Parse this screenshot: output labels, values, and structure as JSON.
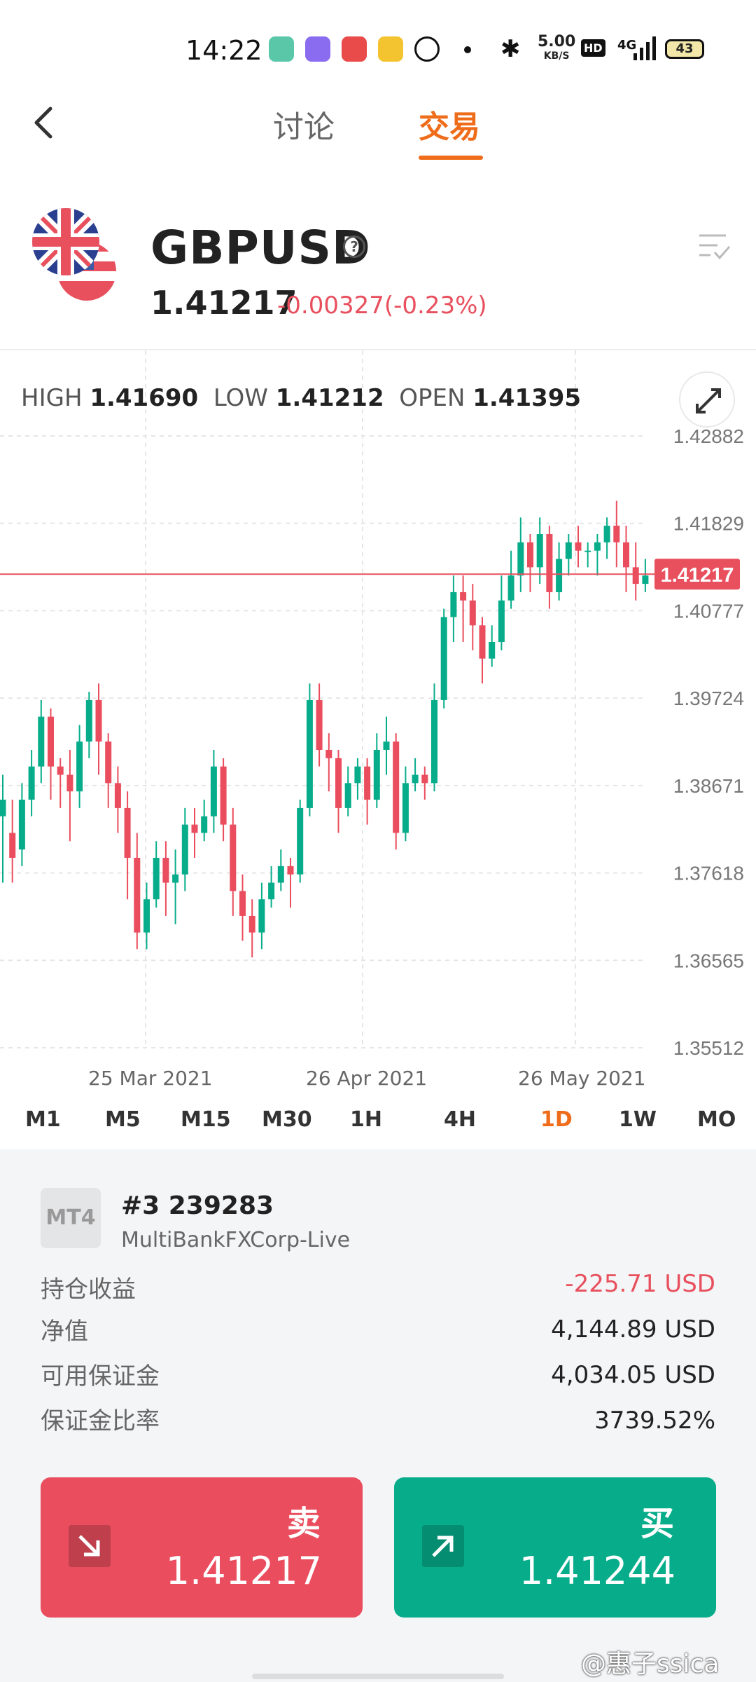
{
  "status_bar": {
    "time": "14:22",
    "net_speed_value": "5.00",
    "net_speed_unit": "KB/S",
    "hd": "HD",
    "network": "4G",
    "battery": "43"
  },
  "nav": {
    "tab_discuss": "讨论",
    "tab_trade": "交易"
  },
  "instrument": {
    "symbol": "GBPUSD",
    "price": "1.41217",
    "change": "-0.00327(-0.23%)"
  },
  "ohl": {
    "high_label": "HIGH",
    "high": "1.41690",
    "low_label": "LOW",
    "low": "1.41212",
    "open_label": "OPEN",
    "open": "1.41395"
  },
  "chart_data": {
    "type": "candlestick",
    "y_ticks": [
      "1.42882",
      "1.41829",
      "1.40777",
      "1.39724",
      "1.38671",
      "1.37618",
      "1.36565",
      "1.35512"
    ],
    "ylim": [
      1.35512,
      1.42882
    ],
    "x_ticks": [
      "25 Mar 2021",
      "26 Apr 2021",
      "26 May 2021"
    ],
    "current_price": 1.41217,
    "current_price_label": "1.41217",
    "candles": [
      [
        1.383,
        1.385,
        1.375,
        1.388
      ],
      [
        1.381,
        1.378,
        1.375,
        1.385
      ],
      [
        1.379,
        1.385,
        1.377,
        1.387
      ],
      [
        1.385,
        1.389,
        1.383,
        1.391
      ],
      [
        1.389,
        1.395,
        1.387,
        1.397
      ],
      [
        1.395,
        1.389,
        1.385,
        1.396
      ],
      [
        1.389,
        1.388,
        1.384,
        1.39
      ],
      [
        1.388,
        1.386,
        1.38,
        1.391
      ],
      [
        1.386,
        1.392,
        1.384,
        1.394
      ],
      [
        1.392,
        1.397,
        1.39,
        1.398
      ],
      [
        1.397,
        1.392,
        1.388,
        1.399
      ],
      [
        1.392,
        1.387,
        1.384,
        1.393
      ],
      [
        1.387,
        1.384,
        1.381,
        1.389
      ],
      [
        1.384,
        1.378,
        1.373,
        1.386
      ],
      [
        1.378,
        1.369,
        1.367,
        1.381
      ],
      [
        1.369,
        1.373,
        1.367,
        1.375
      ],
      [
        1.373,
        1.378,
        1.372,
        1.38
      ],
      [
        1.378,
        1.375,
        1.371,
        1.38
      ],
      [
        1.375,
        1.376,
        1.37,
        1.379
      ],
      [
        1.376,
        1.382,
        1.374,
        1.384
      ],
      [
        1.382,
        1.381,
        1.378,
        1.384
      ],
      [
        1.381,
        1.383,
        1.38,
        1.385
      ],
      [
        1.383,
        1.389,
        1.381,
        1.391
      ],
      [
        1.389,
        1.382,
        1.38,
        1.39
      ],
      [
        1.382,
        1.374,
        1.371,
        1.384
      ],
      [
        1.374,
        1.371,
        1.368,
        1.376
      ],
      [
        1.371,
        1.369,
        1.366,
        1.373
      ],
      [
        1.369,
        1.373,
        1.367,
        1.375
      ],
      [
        1.373,
        1.375,
        1.372,
        1.377
      ],
      [
        1.375,
        1.377,
        1.374,
        1.379
      ],
      [
        1.377,
        1.376,
        1.372,
        1.378
      ],
      [
        1.376,
        1.384,
        1.375,
        1.385
      ],
      [
        1.384,
        1.397,
        1.383,
        1.399
      ],
      [
        1.397,
        1.391,
        1.389,
        1.399
      ],
      [
        1.391,
        1.39,
        1.386,
        1.393
      ],
      [
        1.39,
        1.384,
        1.381,
        1.391
      ],
      [
        1.384,
        1.387,
        1.383,
        1.389
      ],
      [
        1.387,
        1.389,
        1.385,
        1.39
      ],
      [
        1.389,
        1.385,
        1.382,
        1.39
      ],
      [
        1.385,
        1.391,
        1.384,
        1.393
      ],
      [
        1.391,
        1.392,
        1.388,
        1.395
      ],
      [
        1.392,
        1.381,
        1.379,
        1.393
      ],
      [
        1.381,
        1.387,
        1.38,
        1.389
      ],
      [
        1.387,
        1.388,
        1.386,
        1.39
      ],
      [
        1.388,
        1.387,
        1.385,
        1.389
      ],
      [
        1.387,
        1.397,
        1.386,
        1.399
      ],
      [
        1.397,
        1.407,
        1.396,
        1.408
      ],
      [
        1.407,
        1.41,
        1.404,
        1.412
      ],
      [
        1.41,
        1.409,
        1.404,
        1.412
      ],
      [
        1.409,
        1.406,
        1.403,
        1.411
      ],
      [
        1.406,
        1.402,
        1.399,
        1.407
      ],
      [
        1.402,
        1.404,
        1.401,
        1.406
      ],
      [
        1.404,
        1.409,
        1.403,
        1.412
      ],
      [
        1.409,
        1.412,
        1.408,
        1.415
      ],
      [
        1.412,
        1.416,
        1.41,
        1.419
      ],
      [
        1.416,
        1.413,
        1.41,
        1.417
      ],
      [
        1.413,
        1.417,
        1.411,
        1.419
      ],
      [
        1.417,
        1.41,
        1.408,
        1.418
      ],
      [
        1.41,
        1.414,
        1.409,
        1.416
      ],
      [
        1.414,
        1.416,
        1.412,
        1.417
      ],
      [
        1.416,
        1.415,
        1.413,
        1.418
      ],
      [
        1.415,
        1.415,
        1.413,
        1.416
      ],
      [
        1.415,
        1.416,
        1.412,
        1.417
      ],
      [
        1.416,
        1.418,
        1.414,
        1.419
      ],
      [
        1.418,
        1.416,
        1.413,
        1.421
      ],
      [
        1.416,
        1.413,
        1.41,
        1.418
      ],
      [
        1.413,
        1.411,
        1.409,
        1.416
      ],
      [
        1.411,
        1.412,
        1.41,
        1.414
      ]
    ]
  },
  "timeframes": [
    "M1",
    "M5",
    "M15",
    "M30",
    "1H",
    "4H",
    "1D",
    "1W",
    "MO"
  ],
  "active_timeframe": "1D",
  "account": {
    "badge": "MT4",
    "number": "#3 239283",
    "server": "MultiBankFXCorp-Live",
    "rows": [
      {
        "label": "持仓收益",
        "value": "-225.71 USD"
      },
      {
        "label": "净值",
        "value": "4,144.89 USD"
      },
      {
        "label": "可用保证金",
        "value": "4,034.05 USD"
      },
      {
        "label": "保证金比率",
        "value": "3739.52%"
      }
    ]
  },
  "sell": {
    "label": "卖",
    "price": "1.41217"
  },
  "buy": {
    "label": "买",
    "price": "1.41244"
  },
  "watermark": "@惠子ssica",
  "colors": {
    "up": "#07ad8a",
    "down": "#ea4d5d",
    "accent": "#ef6c1a"
  }
}
